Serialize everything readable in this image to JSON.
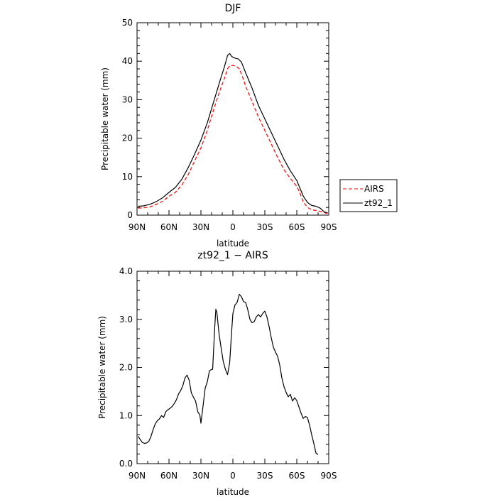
{
  "chart_data": [
    {
      "type": "line",
      "title": "DJF",
      "xlabel": "latitude",
      "ylabel": "Precipitable water  (mm)",
      "xlim": [
        90,
        -90
      ],
      "ylim": [
        0,
        50
      ],
      "xticks": [
        90,
        60,
        30,
        0,
        -30,
        -60,
        -90
      ],
      "xtick_labels": [
        "90N",
        "60N",
        "30N",
        "0",
        "30S",
        "60S",
        "90S"
      ],
      "yticks": [
        0,
        10,
        20,
        30,
        40,
        50
      ],
      "ytick_labels": [
        "0",
        "10",
        "20",
        "30",
        "40",
        "50"
      ],
      "legend": {
        "placement": "right"
      },
      "series": [
        {
          "name": "AIRS",
          "color": "#ff0000",
          "dash": "dashed",
          "points": [
            [
              89,
              1.8
            ],
            [
              84,
              1.9
            ],
            [
              78,
              2.1
            ],
            [
              72,
              2.8
            ],
            [
              66,
              3.6
            ],
            [
              60,
              4.9
            ],
            [
              54,
              5.9
            ],
            [
              48,
              7.8
            ],
            [
              42,
              10.5
            ],
            [
              36,
              14.0
            ],
            [
              30,
              17.5
            ],
            [
              24,
              22.0
            ],
            [
              18,
              27.5
            ],
            [
              12,
              32.5
            ],
            [
              8,
              35.5
            ],
            [
              5,
              38.0
            ],
            [
              3,
              38.8
            ],
            [
              0,
              38.9
            ],
            [
              -3,
              38.7
            ],
            [
              -6,
              38.0
            ],
            [
              -9,
              36.0
            ],
            [
              -12,
              33.5
            ],
            [
              -18,
              29.5
            ],
            [
              -24,
              25.5
            ],
            [
              -30,
              22.0
            ],
            [
              -36,
              18.5
            ],
            [
              -42,
              15.0
            ],
            [
              -48,
              11.8
            ],
            [
              -54,
              9.5
            ],
            [
              -60,
              7.5
            ],
            [
              -63,
              5.7
            ],
            [
              -66,
              3.5
            ],
            [
              -70,
              2.0
            ],
            [
              -74,
              1.4
            ],
            [
              -78,
              1.2
            ],
            [
              -82,
              1.0
            ],
            [
              -86,
              0.6
            ],
            [
              -89,
              0.4
            ]
          ]
        },
        {
          "name": "zt92_1",
          "color": "#000000",
          "dash": "solid",
          "points": [
            [
              89,
              2.3
            ],
            [
              84,
              2.4
            ],
            [
              78,
              2.8
            ],
            [
              72,
              3.5
            ],
            [
              66,
              4.5
            ],
            [
              60,
              5.9
            ],
            [
              54,
              7.2
            ],
            [
              48,
              9.3
            ],
            [
              42,
              12.3
            ],
            [
              36,
              15.8
            ],
            [
              30,
              19.5
            ],
            [
              24,
              24.0
            ],
            [
              18,
              29.5
            ],
            [
              12,
              35.0
            ],
            [
              8,
              38.5
            ],
            [
              5,
              41.5
            ],
            [
              3,
              42.0
            ],
            [
              1,
              41.2
            ],
            [
              -2,
              40.8
            ],
            [
              -5,
              40.6
            ],
            [
              -8,
              39.8
            ],
            [
              -12,
              37.0
            ],
            [
              -18,
              33.0
            ],
            [
              -24,
              28.5
            ],
            [
              -30,
              25.0
            ],
            [
              -36,
              21.5
            ],
            [
              -42,
              18.0
            ],
            [
              -48,
              14.5
            ],
            [
              -54,
              11.5
            ],
            [
              -60,
              9.0
            ],
            [
              -63,
              7.0
            ],
            [
              -66,
              5.0
            ],
            [
              -70,
              3.3
            ],
            [
              -74,
              2.5
            ],
            [
              -78,
              2.3
            ],
            [
              -82,
              1.8
            ],
            [
              -86,
              0.8
            ],
            [
              -89,
              0.6
            ]
          ]
        }
      ]
    },
    {
      "type": "line",
      "title": "zt92_1 − AIRS",
      "xlabel": "latitude",
      "ylabel": "Precipitable water  (mm)",
      "xlim": [
        90,
        -90
      ],
      "ylim": [
        0,
        4
      ],
      "xticks": [
        90,
        60,
        30,
        0,
        -30,
        -60,
        -90
      ],
      "xtick_labels": [
        "90N",
        "60N",
        "30N",
        "0",
        "30S",
        "60S",
        "90S"
      ],
      "yticks": [
        0,
        1,
        2,
        3,
        4
      ],
      "ytick_labels": [
        "0.0",
        "1.0",
        "2.0",
        "3.0",
        "4.0"
      ],
      "series": [
        {
          "color": "#000000",
          "dash": "solid",
          "points": [
            [
              89,
              0.57
            ],
            [
              87,
              0.5
            ],
            [
              85,
              0.44
            ],
            [
              83,
              0.42
            ],
            [
              81,
              0.43
            ],
            [
              79,
              0.46
            ],
            [
              77,
              0.56
            ],
            [
              75,
              0.7
            ],
            [
              73,
              0.82
            ],
            [
              71,
              0.89
            ],
            [
              69,
              0.93
            ],
            [
              67,
              1.0
            ],
            [
              65,
              0.96
            ],
            [
              63,
              1.08
            ],
            [
              61,
              1.12
            ],
            [
              59,
              1.15
            ],
            [
              57,
              1.19
            ],
            [
              55,
              1.25
            ],
            [
              53,
              1.33
            ],
            [
              51,
              1.45
            ],
            [
              49,
              1.52
            ],
            [
              47,
              1.62
            ],
            [
              45,
              1.78
            ],
            [
              43,
              1.84
            ],
            [
              41,
              1.73
            ],
            [
              39,
              1.47
            ],
            [
              37,
              1.38
            ],
            [
              35,
              1.3
            ],
            [
              33,
              1.08
            ],
            [
              31,
              1.01
            ],
            [
              30,
              0.84
            ],
            [
              28,
              1.2
            ],
            [
              26,
              1.57
            ],
            [
              24,
              1.7
            ],
            [
              22,
              1.93
            ],
            [
              20,
              1.96
            ],
            [
              19,
              1.96
            ],
            [
              17,
              2.85
            ],
            [
              16,
              3.21
            ],
            [
              15,
              3.14
            ],
            [
              13,
              2.7
            ],
            [
              11,
              2.4
            ],
            [
              9,
              2.12
            ],
            [
              7,
              1.96
            ],
            [
              5,
              1.85
            ],
            [
              3,
              2.1
            ],
            [
              1,
              2.8
            ],
            [
              0,
              3.12
            ],
            [
              -2,
              3.3
            ],
            [
              -4,
              3.35
            ],
            [
              -6,
              3.52
            ],
            [
              -8,
              3.47
            ],
            [
              -10,
              3.37
            ],
            [
              -12,
              3.35
            ],
            [
              -14,
              3.2
            ],
            [
              -16,
              3.0
            ],
            [
              -18,
              2.93
            ],
            [
              -20,
              2.95
            ],
            [
              -22,
              3.05
            ],
            [
              -24,
              3.1
            ],
            [
              -26,
              3.05
            ],
            [
              -28,
              3.12
            ],
            [
              -30,
              3.17
            ],
            [
              -32,
              3.05
            ],
            [
              -34,
              2.85
            ],
            [
              -36,
              2.62
            ],
            [
              -38,
              2.42
            ],
            [
              -40,
              2.32
            ],
            [
              -42,
              2.23
            ],
            [
              -44,
              2.05
            ],
            [
              -46,
              1.78
            ],
            [
              -48,
              1.6
            ],
            [
              -50,
              1.48
            ],
            [
              -52,
              1.39
            ],
            [
              -54,
              1.44
            ],
            [
              -56,
              1.3
            ],
            [
              -58,
              1.37
            ],
            [
              -60,
              1.31
            ],
            [
              -62,
              1.18
            ],
            [
              -64,
              1.05
            ],
            [
              -66,
              0.94
            ],
            [
              -68,
              0.98
            ],
            [
              -70,
              0.96
            ],
            [
              -72,
              0.8
            ],
            [
              -74,
              0.6
            ],
            [
              -76,
              0.42
            ],
            [
              -78,
              0.22
            ],
            [
              -80,
              0.19
            ]
          ]
        }
      ]
    }
  ]
}
